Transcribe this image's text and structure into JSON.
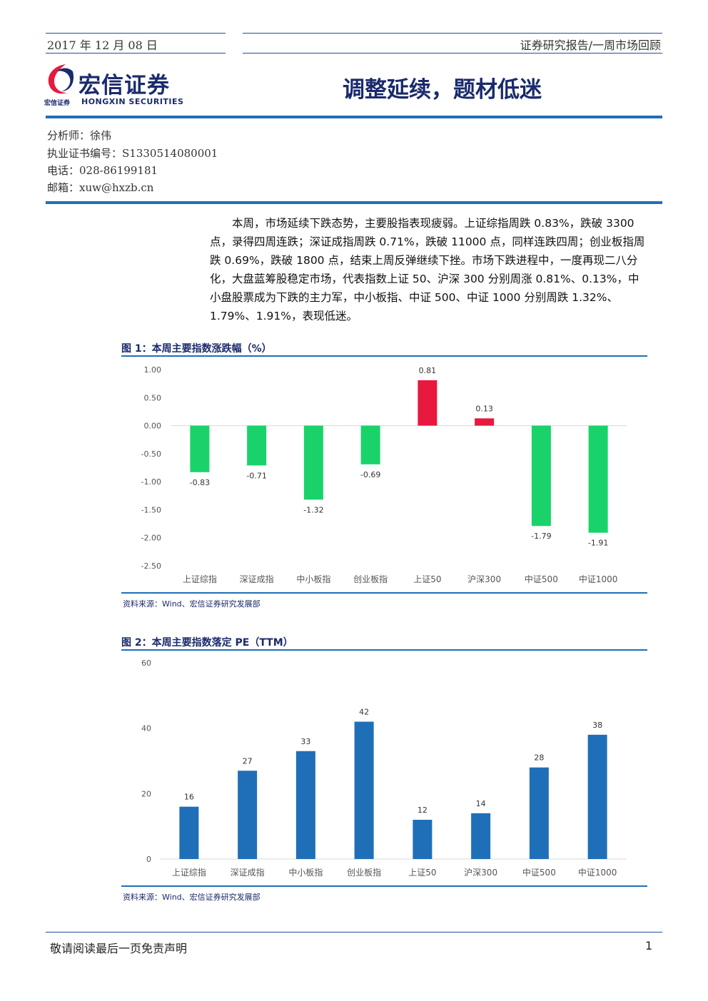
{
  "header": {
    "date": "2017 年 12 月 08 日",
    "report_type": "证券研究报告/一周市场回顾"
  },
  "logo": {
    "name_cn": "宏信证券",
    "name_en": "HONGXIN SECURITIES",
    "name_small": "宏信证券"
  },
  "title": "调整延续，题材低迷",
  "analyst": {
    "name": "分析师：徐伟",
    "cert": "执业证书编号：S1330514080001",
    "phone": "电话：028-86199181",
    "email": "邮箱：xuw@hxzb.cn"
  },
  "summary": "本周，市场延续下跌态势，主要股指表现疲弱。上证综指周跌 0.83%，跌破 3300 点，录得四周连跌；深证成指周跌 0.71%，跌破 11000 点，同样连跌四周；创业板指周跌 0.69%，跌破 1800 点，结束上周反弹继续下挫。市场下跌进程中，一度再现二八分化，大盘蓝筹股稳定市场，代表指数上证 50、沪深 300 分别周涨 0.81%、0.13%，中小盘股票成为下跌的主力军，中小板指、中证 500、中证 1000 分别周跌 1.32%、1.79%、1.91%，表现低迷。",
  "figures": {
    "fig1_title": "图 1：本周主要指数涨跌幅（%）",
    "fig2_title": "图 2：本周主要指数落定 PE（TTM）",
    "source": "资料来源：Wind、宏信证券研究发展部"
  },
  "colors": {
    "up": "#e8193e",
    "down": "#19d36a",
    "pe": "#1f6fb8",
    "brand": "#1a2a6c"
  },
  "chart_data": [
    {
      "type": "bar",
      "title": "",
      "categories": [
        "上证综指",
        "深证成指",
        "中小板指",
        "创业板指",
        "上证50",
        "沪深300",
        "中证500",
        "中证1000"
      ],
      "values": [
        -0.83,
        -0.71,
        -1.32,
        -0.69,
        0.81,
        0.13,
        -1.79,
        -1.91
      ],
      "labels": [
        "-0.83",
        "-0.71",
        "-1.32",
        "-0.69",
        "0.81",
        "0.13",
        "-1.79",
        "-1.91"
      ],
      "yticks": [
        "1.00",
        "0.50",
        "0.00",
        "-0.50",
        "-1.00",
        "-1.50",
        "-2.00",
        "-2.50"
      ],
      "ylim": [
        -2.5,
        1.0
      ],
      "grid": false,
      "legend": "none"
    },
    {
      "type": "bar",
      "title": "",
      "categories": [
        "上证综指",
        "深证成指",
        "中小板指",
        "创业板指",
        "上证50",
        "沪深300",
        "中证500",
        "中证1000"
      ],
      "values": [
        16,
        27,
        33,
        42,
        12,
        14,
        28,
        38
      ],
      "labels": [
        "16",
        "27",
        "33",
        "42",
        "12",
        "14",
        "28",
        "38"
      ],
      "yticks": [
        "60",
        "40",
        "20",
        "0"
      ],
      "ylim": [
        0,
        60
      ],
      "grid": false,
      "legend": "none"
    }
  ],
  "footer": {
    "disclaimer": "敬请阅读最后一页免责声明",
    "page": "1"
  }
}
